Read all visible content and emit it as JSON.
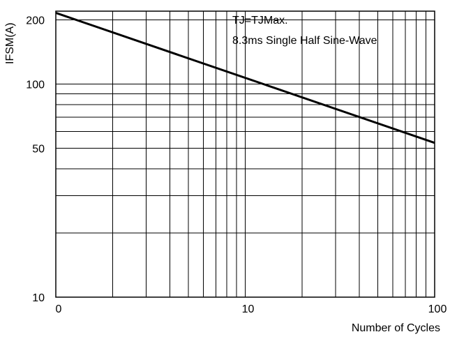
{
  "chart_data": {
    "type": "line",
    "title": "",
    "xlabel": "Number of Cycles",
    "ylabel": "IFSM(A)",
    "x_scale": "log",
    "y_scale": "log",
    "xlim": [
      1,
      100
    ],
    "ylim": [
      10,
      220
    ],
    "x_tick_labels": [
      "0",
      "10",
      "100"
    ],
    "y_tick_labels": [
      "200",
      "100",
      "50",
      "10"
    ],
    "grid": true,
    "annotations": [
      "TJ=TJMax.",
      "8.3ms Single Half Sine-Wave"
    ],
    "series": [
      {
        "x": [
          1,
          100
        ],
        "y": [
          216,
          53
        ]
      }
    ]
  }
}
